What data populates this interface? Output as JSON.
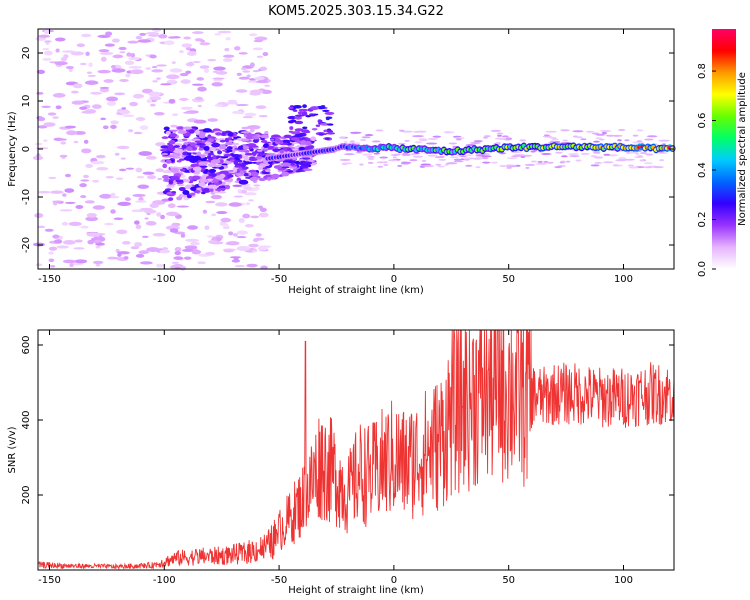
{
  "title": "KOM5.2025.303.15.34.G22",
  "chart_data": [
    {
      "type": "heatmap",
      "name": "spectrogram",
      "xlabel": "Height of straight line (km)",
      "ylabel": "Frequency (Hz)",
      "xlim": [
        -155,
        122
      ],
      "ylim": [
        -25,
        25
      ],
      "xticks": [
        -150,
        -100,
        -50,
        0,
        50,
        100
      ],
      "yticks": [
        -20,
        -10,
        0,
        10,
        20
      ],
      "colorbar": {
        "label": "Normalized spectral amplitude",
        "range": [
          0,
          0.97
        ],
        "ticks": [
          0.0,
          0.2,
          0.4,
          0.6,
          0.8
        ],
        "tick_labels": [
          "0.0",
          "0.2",
          "0.4",
          "0.6",
          "0.8"
        ],
        "colormap": [
          "#ffffff",
          "#e6b3ff",
          "#9933ff",
          "#3300ff",
          "#0066ff",
          "#00ccff",
          "#00ff66",
          "#66ff00",
          "#ffff00",
          "#ff9900",
          "#ff0000",
          "#ff0066"
        ]
      },
      "signal_track": {
        "description_height_km": [
          -25,
          0,
          25,
          50,
          75,
          100,
          120
        ],
        "center_frequency_hz": [
          0.3,
          0.2,
          -0.5,
          0.3,
          0.5,
          0.3,
          0.0
        ],
        "peak_amplitude": [
          0.35,
          0.6,
          0.65,
          0.75,
          0.8,
          0.9,
          0.97
        ]
      }
    },
    {
      "type": "line",
      "name": "snr",
      "xlabel": "Height of straight line (km)",
      "ylabel": "SNR (v/v)",
      "xlim": [
        -155,
        122
      ],
      "ylim": [
        0,
        640
      ],
      "xticks": [
        -150,
        -100,
        -50,
        0,
        50,
        100
      ],
      "yticks": [
        200,
        400,
        600
      ],
      "series": [
        {
          "name": "SNR",
          "color": "#ee3333",
          "x": [
            -155,
            -140,
            -120,
            -105,
            -95,
            -85,
            -75,
            -65,
            -55,
            -45,
            -38,
            -32,
            -25,
            -20,
            -15,
            -10,
            -5,
            0,
            5,
            10,
            15,
            20,
            25,
            30,
            35,
            40,
            45,
            50,
            55,
            60,
            65,
            70,
            80,
            90,
            100,
            110,
            122
          ],
          "values": [
            15,
            12,
            10,
            14,
            35,
            40,
            42,
            50,
            70,
            140,
            200,
            290,
            250,
            200,
            260,
            250,
            280,
            300,
            280,
            300,
            320,
            340,
            420,
            450,
            470,
            480,
            500,
            490,
            480,
            470,
            460,
            470,
            470,
            460,
            460,
            470,
            470
          ]
        }
      ]
    }
  ]
}
